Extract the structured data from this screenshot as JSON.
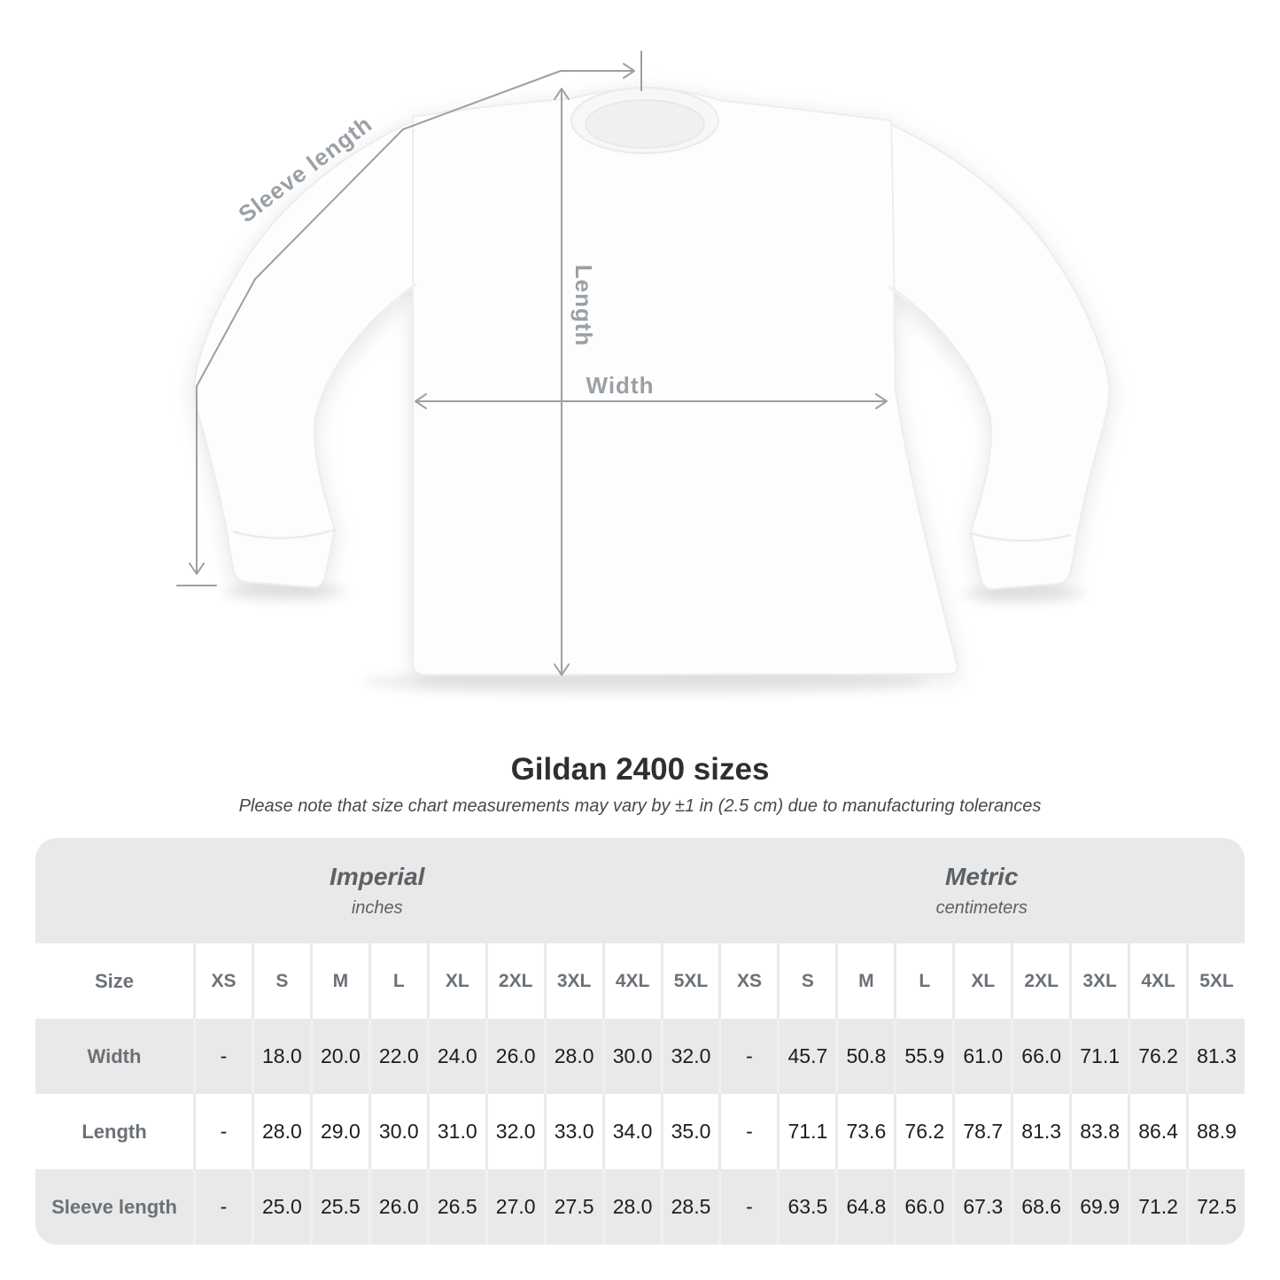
{
  "diagram": {
    "labels": {
      "sleeve_length": "Sleeve length",
      "length": "Length",
      "width": "Width"
    }
  },
  "title": "Gildan 2400 sizes",
  "subtitle": "Please note that size chart measurements may vary by ±1 in (2.5 cm) due to manufacturing tolerances",
  "table": {
    "unit_groups": [
      {
        "name": "Imperial",
        "unit": "inches"
      },
      {
        "name": "Metric",
        "unit": "centimeters"
      }
    ],
    "size_label": "Size",
    "sizes": [
      "XS",
      "S",
      "M",
      "L",
      "XL",
      "2XL",
      "3XL",
      "4XL",
      "5XL"
    ],
    "rows": [
      {
        "label": "Width",
        "imperial": [
          "-",
          "18.0",
          "20.0",
          "22.0",
          "24.0",
          "26.0",
          "28.0",
          "30.0",
          "32.0"
        ],
        "metric": [
          "-",
          "45.7",
          "50.8",
          "55.9",
          "61.0",
          "66.0",
          "71.1",
          "76.2",
          "81.3"
        ]
      },
      {
        "label": "Length",
        "imperial": [
          "-",
          "28.0",
          "29.0",
          "30.0",
          "31.0",
          "32.0",
          "33.0",
          "34.0",
          "35.0"
        ],
        "metric": [
          "-",
          "71.1",
          "73.6",
          "76.2",
          "78.7",
          "81.3",
          "83.8",
          "86.4",
          "88.9"
        ]
      },
      {
        "label": "Sleeve length",
        "imperial": [
          "-",
          "25.0",
          "25.5",
          "26.0",
          "26.5",
          "27.0",
          "27.5",
          "28.0",
          "28.5"
        ],
        "metric": [
          "-",
          "63.5",
          "64.8",
          "66.0",
          "67.3",
          "68.6",
          "69.9",
          "71.2",
          "72.5"
        ]
      }
    ]
  },
  "colors": {
    "dimension_lines": "#9aa0a5",
    "table_background": "#e9e9e9",
    "header_text": "#6b7177",
    "value_text": "#1d1d1d"
  }
}
